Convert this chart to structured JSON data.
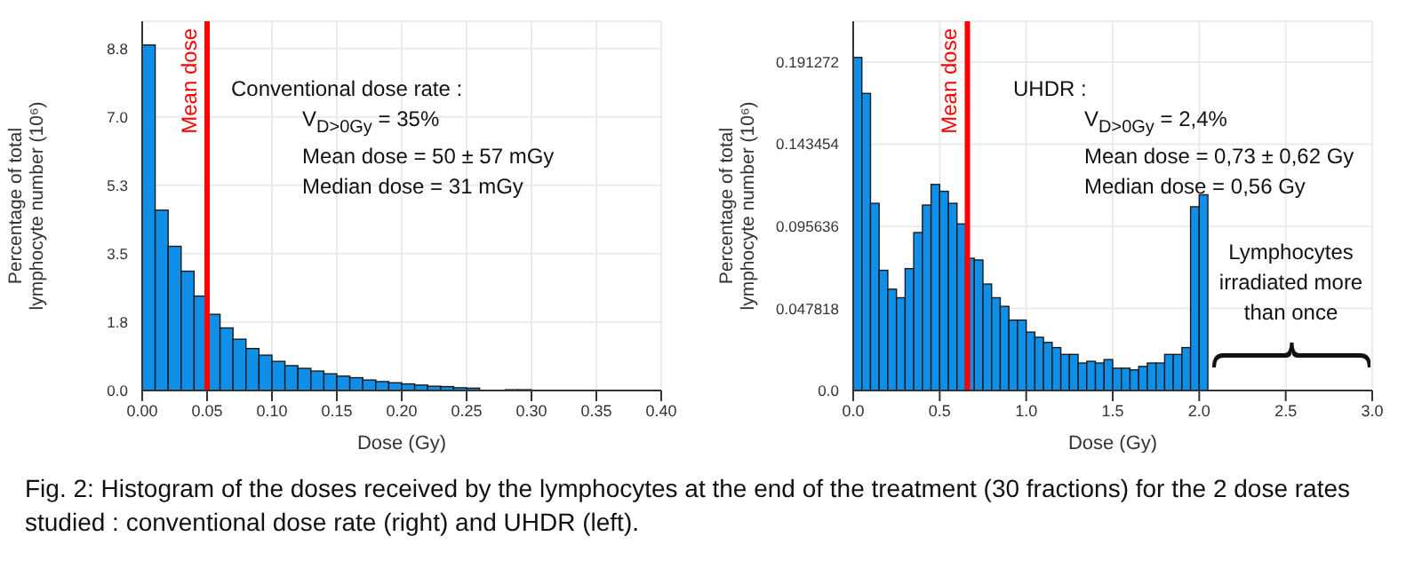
{
  "chart_data": [
    {
      "type": "histogram",
      "xlabel": "Dose (Gy)",
      "ylabel": "Percentage of total lymphocyte number (10⁶)",
      "color": "#0f8fe8",
      "bins": [
        0,
        0.01,
        0.02,
        0.03,
        0.04,
        0.05,
        0.06,
        0.07,
        0.08,
        0.09,
        0.1,
        0.11,
        0.12,
        0.13,
        0.14,
        0.15,
        0.16,
        0.17,
        0.18,
        0.19,
        0.2,
        0.21,
        0.22,
        0.23,
        0.24,
        0.25,
        0.26,
        0.27,
        0.28,
        0.29,
        0.3,
        0.31,
        0.32,
        0.33,
        0.34,
        0.35,
        0.36,
        0.37,
        0.38,
        0.39,
        0.4
      ],
      "values": [
        8.89,
        4.64,
        3.71,
        3.07,
        2.43,
        1.96,
        1.61,
        1.32,
        1.08,
        0.91,
        0.75,
        0.64,
        0.57,
        0.5,
        0.43,
        0.37,
        0.33,
        0.27,
        0.23,
        0.2,
        0.17,
        0.14,
        0.11,
        0.1,
        0.07,
        0.06,
        null,
        null,
        0.02,
        0.02,
        null,
        null,
        null,
        0,
        0,
        0,
        0,
        0,
        0,
        0
      ],
      "xlim": [
        0,
        0.4
      ],
      "xticks": [
        {
          "value": 0,
          "label": "0.00"
        },
        {
          "value": 0.05,
          "label": "0.05"
        },
        {
          "value": 0.1,
          "label": "0.10"
        },
        {
          "value": 0.15,
          "label": "0.15"
        },
        {
          "value": 0.2,
          "label": "0.20"
        },
        {
          "value": 0.25,
          "label": "0.25"
        },
        {
          "value": 0.3,
          "label": "0.30"
        },
        {
          "value": 0.35,
          "label": "0.35"
        },
        {
          "value": 0.4,
          "label": "0.40"
        }
      ],
      "ylim": [
        0,
        9.5
      ],
      "yticks": [
        {
          "value": 0,
          "label": "0.0"
        },
        {
          "value": 1.76,
          "label": "1.8"
        },
        {
          "value": 3.52,
          "label": "3.5"
        },
        {
          "value": 5.28,
          "label": "5.3"
        },
        {
          "value": 7.04,
          "label": "7.0"
        },
        8.8
      ],
      "grid": true,
      "ref_lines": [
        {
          "axis": "x",
          "value": 0.05,
          "label": "Mean dose",
          "color": "#ff0000"
        }
      ],
      "annotations": [
        "Conventional dose rate :\nV$_{D>0Gy}$ = 35%\nMean dose = 50 ± 57 mGy\nMedian dose = 31 mGy"
      ]
    },
    {
      "type": "histogram",
      "xlabel": "Dose (Gy)",
      "ylabel": "Percentage of total lymphocyte number (10⁶)",
      "color": "#0f8fe8",
      "bins": [
        0,
        0.05,
        0.1,
        0.15,
        0.2,
        0.25,
        0.3,
        0.35,
        0.4,
        0.45,
        0.5,
        0.55,
        0.6,
        0.65,
        0.7,
        0.75,
        0.8,
        0.85,
        0.9,
        0.95,
        1.0,
        1.05,
        1.1,
        1.15,
        1.2,
        1.25,
        1.3,
        1.35,
        1.4,
        1.45,
        1.5,
        1.55,
        1.6,
        1.65,
        1.7,
        1.75,
        1.8,
        1.85,
        1.9,
        1.95,
        2.0,
        2.05
      ],
      "values": [
        0.194,
        0.173,
        0.109,
        0.07,
        0.059,
        0.054,
        0.071,
        0.092,
        0.108,
        0.12,
        0.116,
        0.109,
        0.097,
        0.077,
        0.076,
        0.062,
        0.054,
        0.049,
        0.041,
        0.041,
        0.034,
        0.031,
        0.028,
        0.025,
        0.021,
        0.021,
        0.016,
        0.017,
        0.016,
        0.018,
        0.013,
        0.013,
        0.012,
        0.014,
        0.016,
        0.016,
        0.021,
        0.021,
        0.025,
        0.107,
        0.114
      ],
      "xlim": [
        0,
        3
      ],
      "xticks": [
        {
          "value": 0,
          "label": "0.0"
        },
        {
          "value": 0.5,
          "label": "0.5"
        },
        {
          "value": 1,
          "label": "1.0"
        },
        {
          "value": 1.5,
          "label": "1.5"
        },
        {
          "value": 2,
          "label": "2.0"
        },
        {
          "value": 2.5,
          "label": "2.5"
        },
        {
          "value": 3,
          "label": "3.0"
        }
      ],
      "ylim": [
        0,
        0.215
      ],
      "yticks": [
        {
          "value": 0,
          "label": "0.0"
        },
        0.047818,
        0.095636,
        0.143454,
        0.191272
      ],
      "grid": true,
      "ref_lines": [
        {
          "axis": "x",
          "value": 0.66,
          "label": "Mean dose",
          "color": "#ff0000"
        }
      ],
      "annotations": [
        "UHDR :\nV$_{D>0Gy}$ = 2,4%\nMean dose = 0,73 ± 0,62 Gy\nMedian dose = 0,56 Gy",
        "Lymphocytes irradiated more than once",
        "Fig. 2: Histogram of the doses received by the lymphocytes at the end of the treatment (30 fractions) for the 2 dose rates studied : conventional dose rate (right) and UHDR (left)."
      ]
    }
  ]
}
